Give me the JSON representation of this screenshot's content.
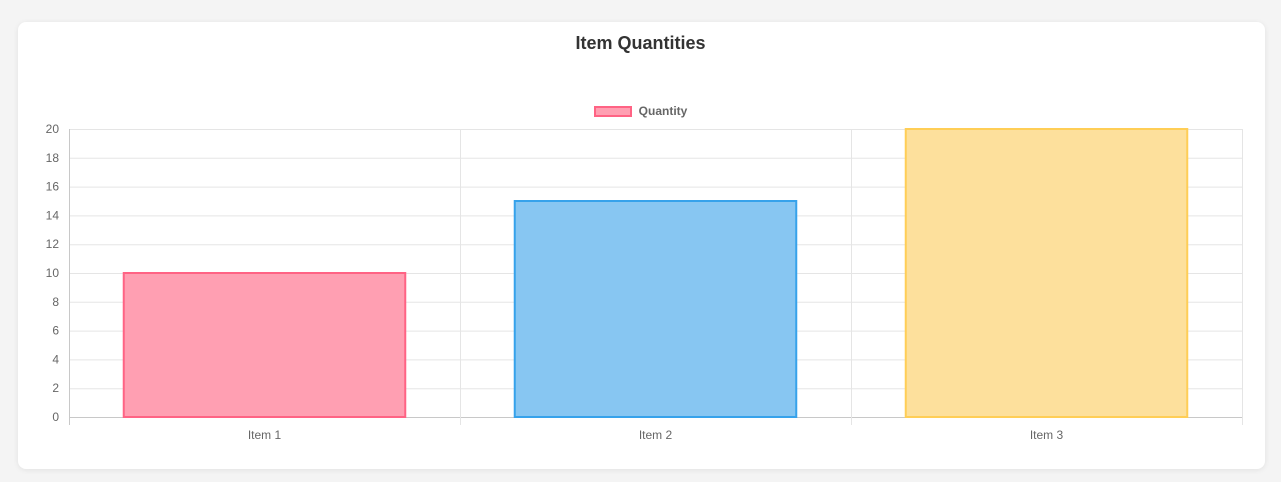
{
  "chart_data": {
    "type": "bar",
    "title": "Item Quantities",
    "categories": [
      "Item 1",
      "Item 2",
      "Item 3"
    ],
    "series": [
      {
        "name": "Quantity",
        "values": [
          10,
          15,
          20
        ]
      }
    ],
    "ylim": [
      0,
      20
    ],
    "yticks": [
      0,
      2,
      4,
      6,
      8,
      10,
      12,
      14,
      16,
      18,
      20
    ],
    "xlabel": "",
    "ylabel": "",
    "grid": true,
    "legend_position": "top",
    "bar_fill_colors": [
      "#ff9fb2",
      "#87c6f2",
      "#fde09c"
    ],
    "bar_border_colors": [
      "#ff6384",
      "#36a2eb",
      "#ffce56"
    ]
  }
}
